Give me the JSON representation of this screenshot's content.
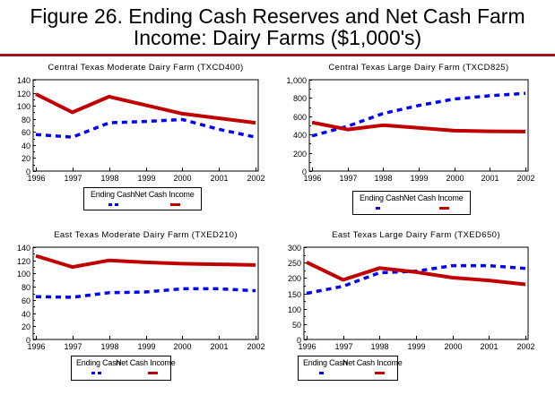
{
  "figure": {
    "title_line1": "Figure 26. Ending Cash Reserves and Net Cash Farm",
    "title_line2": "Income:  Dairy Farms ($1,000's)",
    "rule_color": "#a50f1a"
  },
  "colors": {
    "ending_cash": "#0000ff",
    "net_cash_income": "#c00000"
  },
  "chart_data": [
    {
      "type": "line",
      "title": "Central Texas Moderate Dairy Farm (TXCD400)",
      "x": [
        "1996",
        "1997",
        "1998",
        "1999",
        "2000",
        "2001",
        "2002"
      ],
      "ylim": [
        0,
        140
      ],
      "yticks": [
        "0",
        "20",
        "40",
        "60",
        "80",
        "100",
        "120",
        "140"
      ],
      "ytick_values": [
        0,
        20,
        40,
        60,
        80,
        100,
        120,
        140
      ],
      "xlabel": "",
      "ylabel": "",
      "grid": false,
      "legend": "bottom",
      "series": [
        {
          "name": "Ending Cash",
          "style": "dashed",
          "values": [
            56,
            52,
            74,
            76,
            79,
            64,
            52
          ]
        },
        {
          "name": "Net Cash Income",
          "style": "solid",
          "values": [
            118,
            90,
            114,
            101,
            88,
            81,
            74
          ]
        }
      ]
    },
    {
      "type": "line",
      "title": "Central Texas Large Dairy Farm (TXCD825)",
      "x": [
        "1996",
        "1997",
        "1998",
        "1999",
        "2000",
        "2001",
        "2002"
      ],
      "ylim": [
        0,
        1000
      ],
      "yticks": [
        "0",
        "200",
        "400",
        "600",
        "800",
        "1,000"
      ],
      "ytick_values": [
        0,
        200,
        400,
        600,
        800,
        1000
      ],
      "xlabel": "",
      "ylabel": "",
      "grid": false,
      "legend": "bottom",
      "series": [
        {
          "name": "Ending Cash",
          "style": "dashed",
          "values": [
            385,
            490,
            630,
            718,
            789,
            825,
            851
          ]
        },
        {
          "name": "Net Cash Income",
          "style": "solid",
          "values": [
            532,
            455,
            502,
            474,
            442,
            435,
            432
          ]
        }
      ]
    },
    {
      "type": "line",
      "title": "East Texas Moderate Dairy Farm (TXED210)",
      "x": [
        "1996",
        "1997",
        "1998",
        "1999",
        "2000",
        "2001",
        "2002"
      ],
      "ylim": [
        0,
        140
      ],
      "yticks": [
        "0",
        "20",
        "40",
        "60",
        "80",
        "100",
        "120",
        "140"
      ],
      "ytick_values": [
        0,
        20,
        40,
        60,
        80,
        100,
        120,
        140
      ],
      "xlabel": "",
      "ylabel": "",
      "grid": false,
      "legend": "bottom",
      "series": [
        {
          "name": "Ending Cash",
          "style": "dashed",
          "values": [
            65,
            64,
            71,
            72,
            77,
            77,
            74
          ]
        },
        {
          "name": "Net Cash Income",
          "style": "solid",
          "values": [
            127,
            110,
            120,
            117,
            115,
            114,
            113
          ]
        }
      ]
    },
    {
      "type": "line",
      "title": "East Texas Large Dairy Farm (TXED650)",
      "x": [
        "1996",
        "1997",
        "1998",
        "1999",
        "2000",
        "2001",
        "2002"
      ],
      "ylim": [
        0,
        300
      ],
      "yticks": [
        "0",
        "50",
        "100",
        "150",
        "200",
        "250",
        "300"
      ],
      "ytick_values": [
        0,
        50,
        100,
        150,
        200,
        250,
        300
      ],
      "xlabel": "",
      "ylabel": "",
      "grid": false,
      "legend": "bottom",
      "series": [
        {
          "name": "Ending Cash",
          "style": "dashed",
          "values": [
            150,
            173,
            217,
            222,
            240,
            240,
            231
          ]
        },
        {
          "name": "Net Cash Income",
          "style": "solid",
          "values": [
            251,
            194,
            232,
            219,
            201,
            192,
            179
          ]
        }
      ]
    }
  ]
}
